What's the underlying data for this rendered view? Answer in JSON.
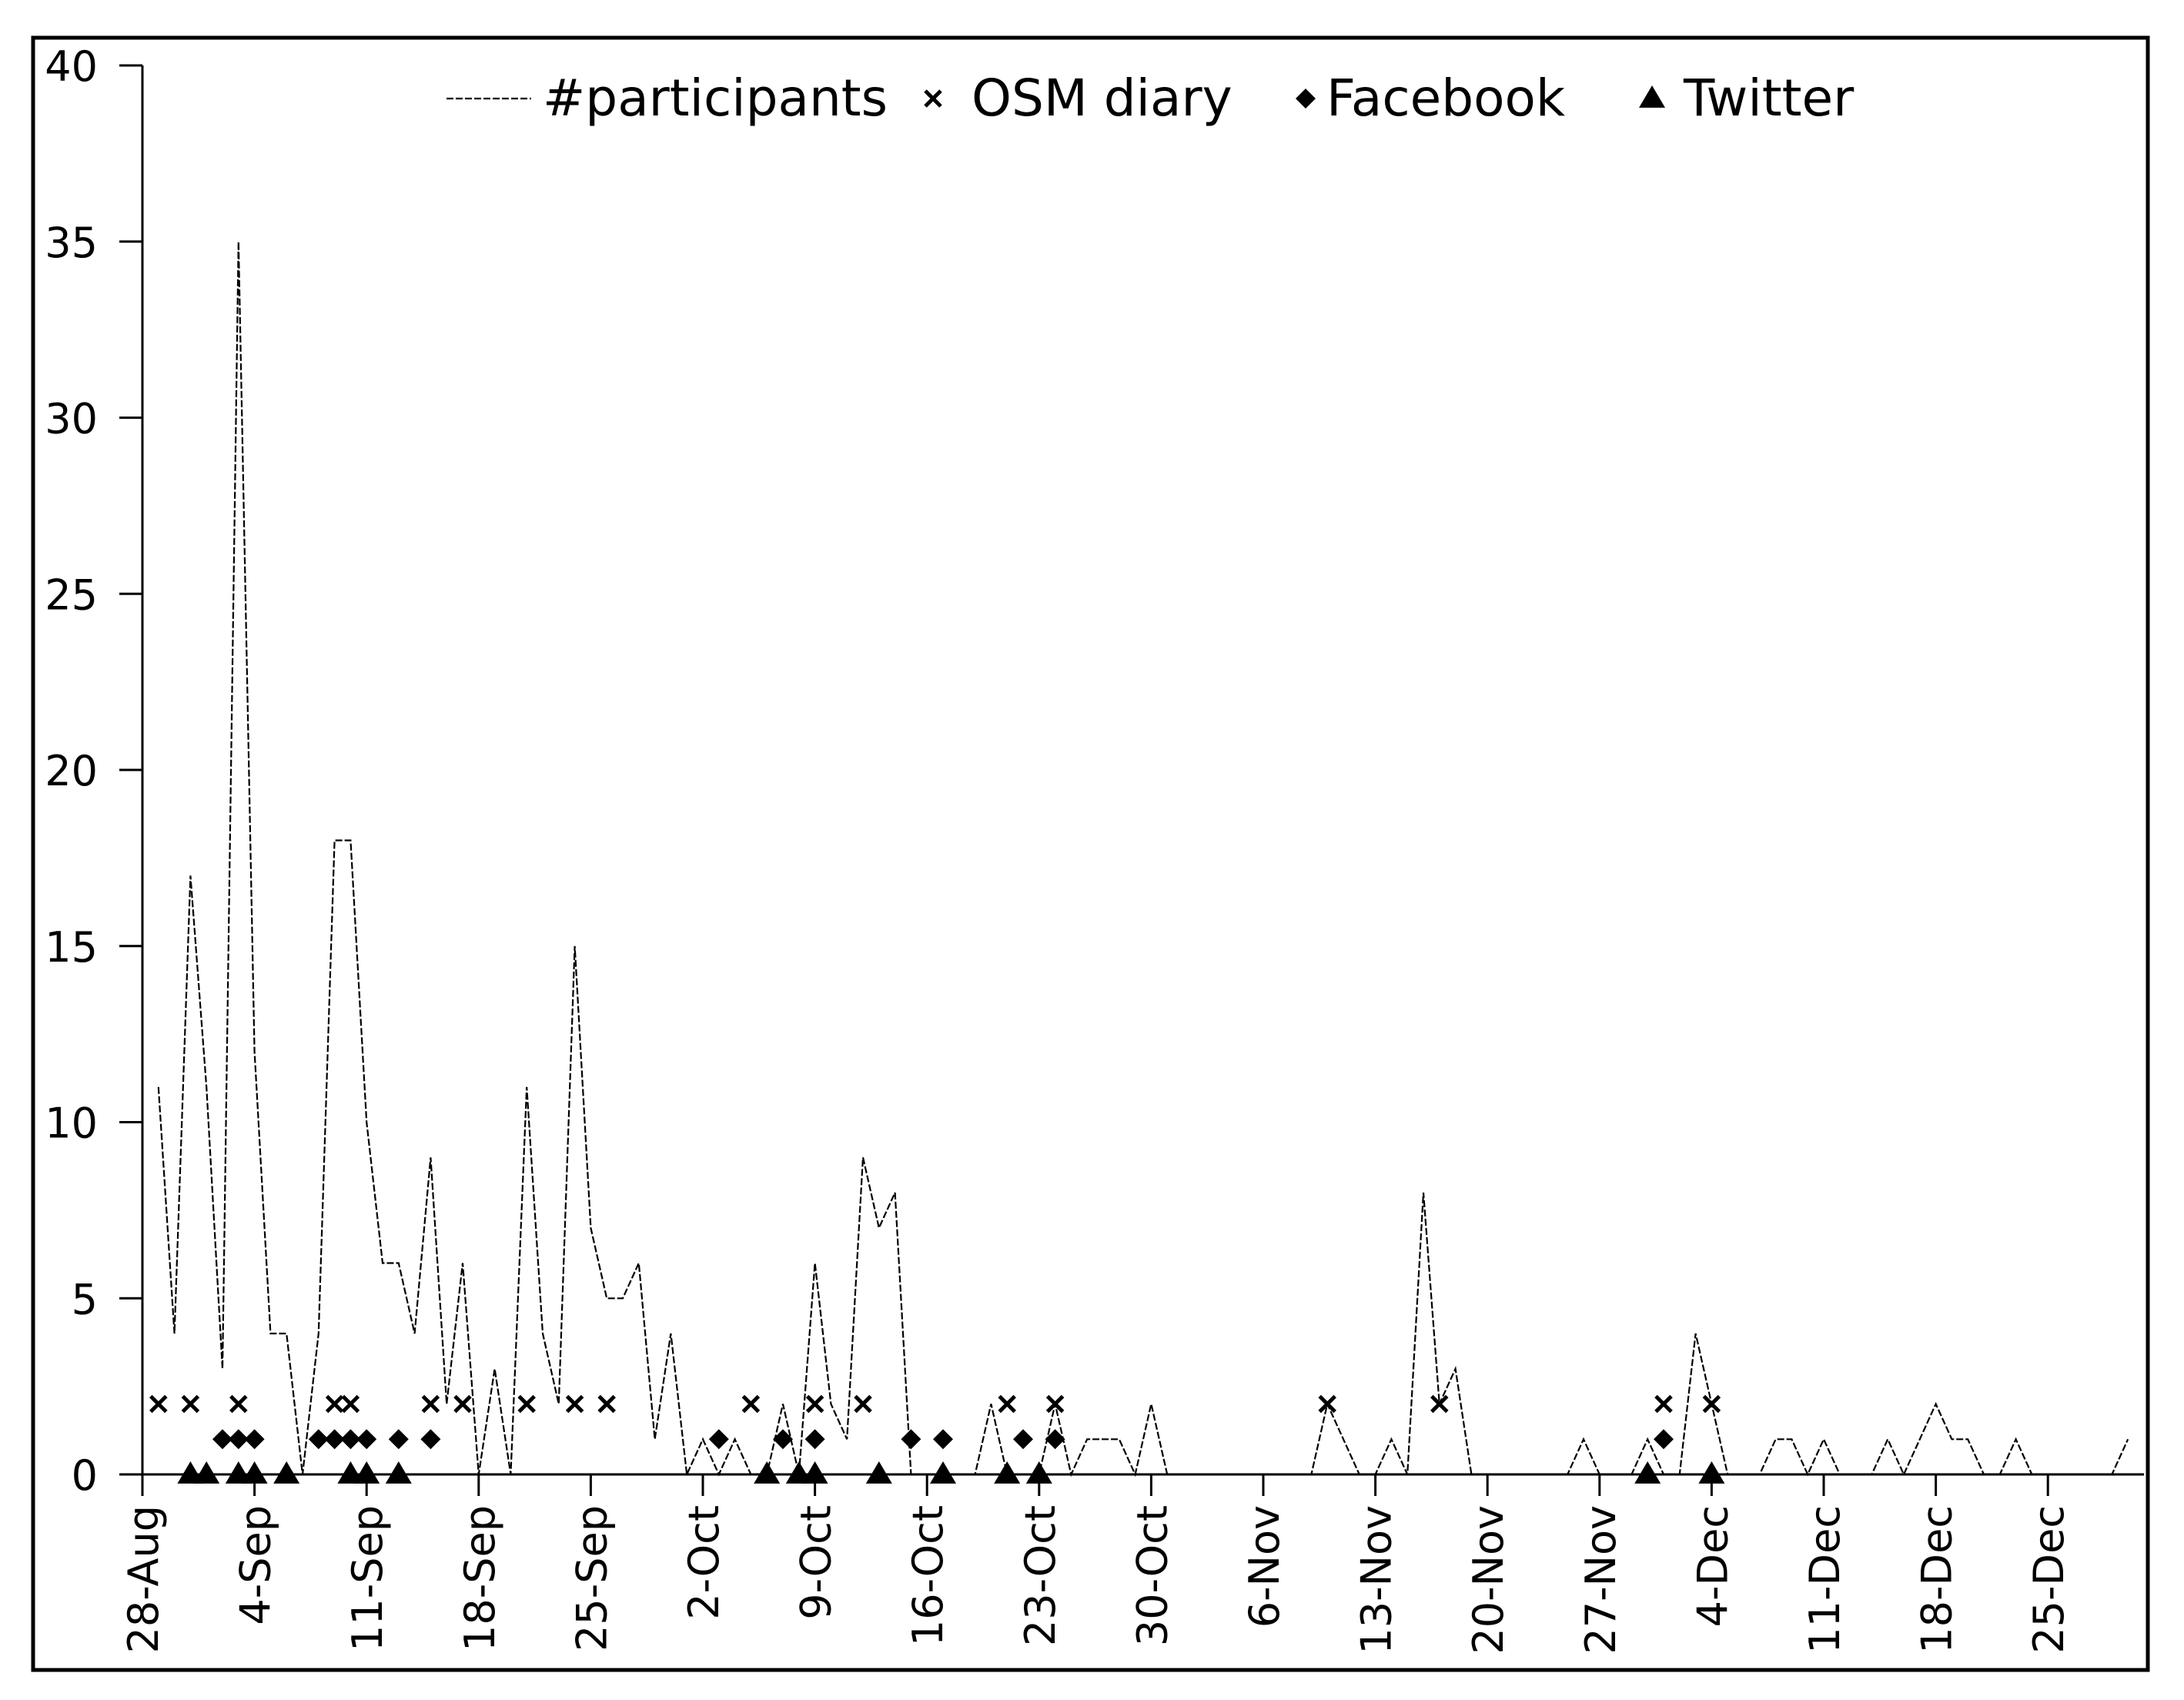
{
  "chart_data": {
    "type": "line",
    "title": "",
    "xlabel": "",
    "ylabel": "",
    "ylim": [
      0,
      40
    ],
    "yticks": [
      0,
      5,
      10,
      15,
      20,
      25,
      30,
      35,
      40
    ],
    "xlim": [
      "2012-08-28",
      "2012-12-31"
    ],
    "xticks": [
      {
        "date": "2012-08-28",
        "label": "28-Aug"
      },
      {
        "date": "2012-09-04",
        "label": "4-Sep"
      },
      {
        "date": "2012-09-11",
        "label": "11-Sep"
      },
      {
        "date": "2012-09-18",
        "label": "18-Sep"
      },
      {
        "date": "2012-09-25",
        "label": "25-Sep"
      },
      {
        "date": "2012-10-02",
        "label": "2-Oct"
      },
      {
        "date": "2012-10-09",
        "label": "9-Oct"
      },
      {
        "date": "2012-10-16",
        "label": "16-Oct"
      },
      {
        "date": "2012-10-23",
        "label": "23-Oct"
      },
      {
        "date": "2012-10-30",
        "label": "30-Oct"
      },
      {
        "date": "2012-11-06",
        "label": "6-Nov"
      },
      {
        "date": "2012-11-13",
        "label": "13-Nov"
      },
      {
        "date": "2012-11-20",
        "label": "20-Nov"
      },
      {
        "date": "2012-11-27",
        "label": "27-Nov"
      },
      {
        "date": "2012-12-04",
        "label": "4-Dec"
      },
      {
        "date": "2012-12-11",
        "label": "11-Dec"
      },
      {
        "date": "2012-12-18",
        "label": "18-Dec"
      },
      {
        "date": "2012-12-25",
        "label": "25-Dec"
      }
    ],
    "grid": false,
    "legend_position": "top",
    "series": [
      {
        "name": "#participants",
        "style": "dashed-line",
        "color": "#000000",
        "points": [
          [
            "2012-08-29",
            11
          ],
          [
            "2012-08-30",
            4
          ],
          [
            "2012-08-31",
            17
          ],
          [
            "2012-09-01",
            11
          ],
          [
            "2012-09-02",
            3
          ],
          [
            "2012-09-03",
            35
          ],
          [
            "2012-09-04",
            12
          ],
          [
            "2012-09-05",
            4
          ],
          [
            "2012-09-06",
            4
          ],
          [
            "2012-09-07",
            0
          ],
          [
            "2012-09-08",
            4
          ],
          [
            "2012-09-09",
            18
          ],
          [
            "2012-09-10",
            18
          ],
          [
            "2012-09-11",
            10
          ],
          [
            "2012-09-12",
            6
          ],
          [
            "2012-09-13",
            6
          ],
          [
            "2012-09-14",
            4
          ],
          [
            "2012-09-15",
            9
          ],
          [
            "2012-09-16",
            2
          ],
          [
            "2012-09-17",
            6
          ],
          [
            "2012-09-18",
            0
          ],
          [
            "2012-09-19",
            3
          ],
          [
            "2012-09-20",
            0
          ],
          [
            "2012-09-21",
            11
          ],
          [
            "2012-09-22",
            4
          ],
          [
            "2012-09-23",
            2
          ],
          [
            "2012-09-24",
            15
          ],
          [
            "2012-09-25",
            7
          ],
          [
            "2012-09-26",
            5
          ],
          [
            "2012-09-27",
            5
          ],
          [
            "2012-09-28",
            6
          ],
          [
            "2012-09-29",
            1
          ],
          [
            "2012-09-30",
            4
          ],
          [
            "2012-10-01",
            0
          ],
          [
            "2012-10-02",
            1
          ],
          [
            "2012-10-03",
            0
          ],
          [
            "2012-10-04",
            1
          ],
          [
            "2012-10-05",
            0
          ],
          [
            "2012-10-06",
            0
          ],
          [
            "2012-10-07",
            2
          ],
          [
            "2012-10-08",
            0
          ],
          [
            "2012-10-09",
            6
          ],
          [
            "2012-10-10",
            2
          ],
          [
            "2012-10-11",
            1
          ],
          [
            "2012-10-12",
            9
          ],
          [
            "2012-10-13",
            7
          ],
          [
            "2012-10-14",
            8
          ],
          [
            "2012-10-15",
            0
          ],
          [
            "2012-10-16",
            0
          ],
          [
            "2012-10-17",
            0
          ],
          [
            "2012-10-18",
            0
          ],
          [
            "2012-10-19",
            0
          ],
          [
            "2012-10-20",
            2
          ],
          [
            "2012-10-21",
            0
          ],
          [
            "2012-10-22",
            0
          ],
          [
            "2012-10-23",
            0
          ],
          [
            "2012-10-24",
            2
          ],
          [
            "2012-10-25",
            0
          ],
          [
            "2012-10-26",
            1
          ],
          [
            "2012-10-27",
            1
          ],
          [
            "2012-10-28",
            1
          ],
          [
            "2012-10-29",
            0
          ],
          [
            "2012-10-30",
            2
          ],
          [
            "2012-10-31",
            0
          ],
          [
            "2012-11-01",
            0
          ],
          [
            "2012-11-02",
            0
          ],
          [
            "2012-11-03",
            0
          ],
          [
            "2012-11-04",
            0
          ],
          [
            "2012-11-05",
            0
          ],
          [
            "2012-11-06",
            0
          ],
          [
            "2012-11-07",
            0
          ],
          [
            "2012-11-08",
            0
          ],
          [
            "2012-11-09",
            0
          ],
          [
            "2012-11-10",
            2
          ],
          [
            "2012-11-11",
            1
          ],
          [
            "2012-11-12",
            0
          ],
          [
            "2012-11-13",
            0
          ],
          [
            "2012-11-14",
            1
          ],
          [
            "2012-11-15",
            0
          ],
          [
            "2012-11-16",
            8
          ],
          [
            "2012-11-17",
            2
          ],
          [
            "2012-11-18",
            3
          ],
          [
            "2012-11-19",
            0
          ],
          [
            "2012-11-20",
            0
          ],
          [
            "2012-11-21",
            0
          ],
          [
            "2012-11-22",
            0
          ],
          [
            "2012-11-23",
            0
          ],
          [
            "2012-11-24",
            0
          ],
          [
            "2012-11-25",
            0
          ],
          [
            "2012-11-26",
            1
          ],
          [
            "2012-11-27",
            0
          ],
          [
            "2012-11-28",
            0
          ],
          [
            "2012-11-29",
            0
          ],
          [
            "2012-11-30",
            1
          ],
          [
            "2012-12-01",
            0
          ],
          [
            "2012-12-02",
            0
          ],
          [
            "2012-12-03",
            4
          ],
          [
            "2012-12-04",
            2
          ],
          [
            "2012-12-05",
            0
          ],
          [
            "2012-12-06",
            0
          ],
          [
            "2012-12-07",
            0
          ],
          [
            "2012-12-08",
            1
          ],
          [
            "2012-12-09",
            1
          ],
          [
            "2012-12-10",
            0
          ],
          [
            "2012-12-11",
            1
          ],
          [
            "2012-12-12",
            0
          ],
          [
            "2012-12-13",
            0
          ],
          [
            "2012-12-14",
            0
          ],
          [
            "2012-12-15",
            1
          ],
          [
            "2012-12-16",
            0
          ],
          [
            "2012-12-17",
            1
          ],
          [
            "2012-12-18",
            2
          ],
          [
            "2012-12-19",
            1
          ],
          [
            "2012-12-20",
            1
          ],
          [
            "2012-12-21",
            0
          ],
          [
            "2012-12-22",
            0
          ],
          [
            "2012-12-23",
            1
          ],
          [
            "2012-12-24",
            0
          ],
          [
            "2012-12-25",
            0
          ],
          [
            "2012-12-26",
            0
          ],
          [
            "2012-12-27",
            0
          ],
          [
            "2012-12-28",
            0
          ],
          [
            "2012-12-29",
            0
          ],
          [
            "2012-12-30",
            1
          ]
        ]
      },
      {
        "name": "OSM diary",
        "style": "x-marker",
        "color": "#000000",
        "points": [
          [
            "2012-08-29",
            2
          ],
          [
            "2012-08-31",
            2
          ],
          [
            "2012-09-03",
            2
          ],
          [
            "2012-09-09",
            2
          ],
          [
            "2012-09-10",
            2
          ],
          [
            "2012-09-15",
            2
          ],
          [
            "2012-09-17",
            2
          ],
          [
            "2012-09-21",
            2
          ],
          [
            "2012-09-24",
            2
          ],
          [
            "2012-09-26",
            2
          ],
          [
            "2012-10-05",
            2
          ],
          [
            "2012-10-09",
            2
          ],
          [
            "2012-10-12",
            2
          ],
          [
            "2012-10-21",
            2
          ],
          [
            "2012-10-24",
            2
          ],
          [
            "2012-11-10",
            2
          ],
          [
            "2012-11-17",
            2
          ],
          [
            "2012-12-01",
            2
          ],
          [
            "2012-12-04",
            2
          ]
        ]
      },
      {
        "name": "Facebook",
        "style": "diamond-marker",
        "color": "#000000",
        "points": [
          [
            "2012-09-02",
            1
          ],
          [
            "2012-09-03",
            1
          ],
          [
            "2012-09-04",
            1
          ],
          [
            "2012-09-08",
            1
          ],
          [
            "2012-09-09",
            1
          ],
          [
            "2012-09-10",
            1
          ],
          [
            "2012-09-11",
            1
          ],
          [
            "2012-09-13",
            1
          ],
          [
            "2012-09-15",
            1
          ],
          [
            "2012-10-03",
            1
          ],
          [
            "2012-10-07",
            1
          ],
          [
            "2012-10-09",
            1
          ],
          [
            "2012-10-15",
            1
          ],
          [
            "2012-10-17",
            1
          ],
          [
            "2012-10-22",
            1
          ],
          [
            "2012-10-24",
            1
          ],
          [
            "2012-12-01",
            1
          ]
        ]
      },
      {
        "name": "Twitter",
        "style": "triangle-marker",
        "color": "#000000",
        "points": [
          [
            "2012-08-31",
            0
          ],
          [
            "2012-09-01",
            0
          ],
          [
            "2012-09-03",
            0
          ],
          [
            "2012-09-04",
            0
          ],
          [
            "2012-09-06",
            0
          ],
          [
            "2012-09-10",
            0
          ],
          [
            "2012-09-11",
            0
          ],
          [
            "2012-09-13",
            0
          ],
          [
            "2012-10-06",
            0
          ],
          [
            "2012-10-08",
            0
          ],
          [
            "2012-10-09",
            0
          ],
          [
            "2012-10-13",
            0
          ],
          [
            "2012-10-17",
            0
          ],
          [
            "2012-10-21",
            0
          ],
          [
            "2012-10-23",
            0
          ],
          [
            "2012-11-30",
            0
          ],
          [
            "2012-12-04",
            0
          ]
        ]
      }
    ]
  }
}
